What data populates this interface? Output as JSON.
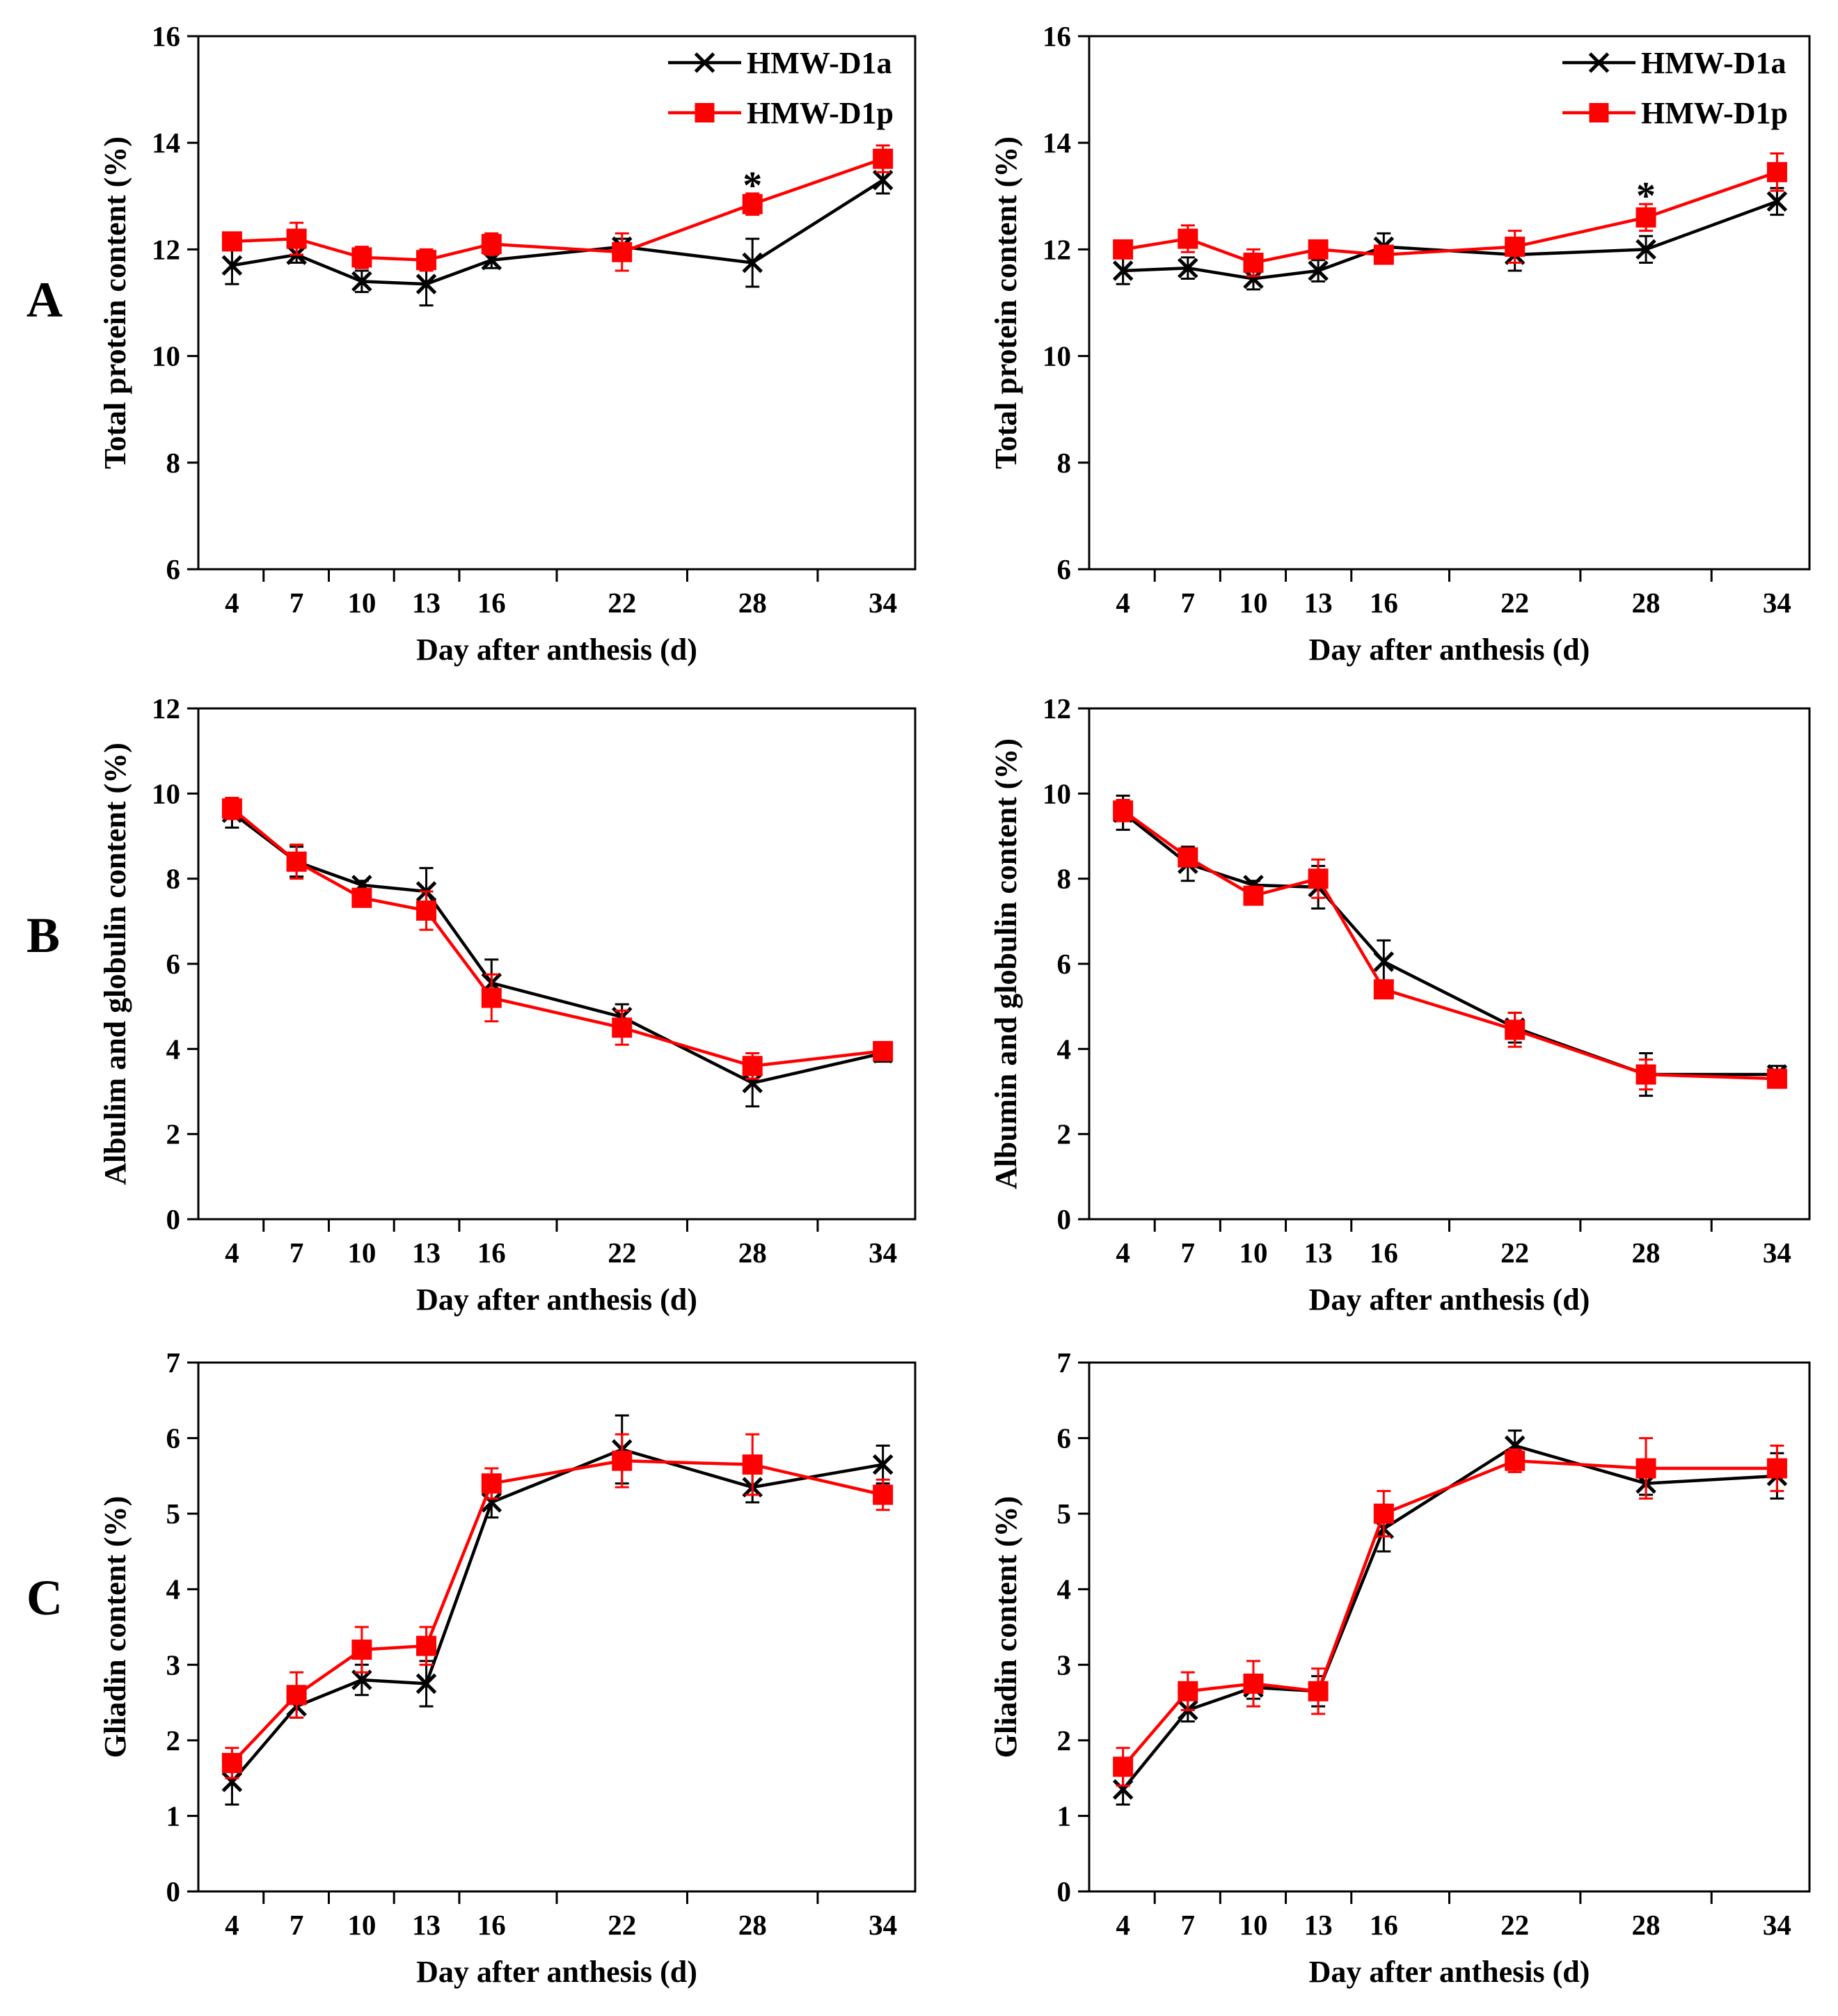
{
  "panel_letters": [
    "A",
    "B",
    "C"
  ],
  "colors": {
    "HMW-D1a": "#000000",
    "HMW-D1p": "#ff0000"
  },
  "chart_data": [
    {
      "type": "line",
      "row": 0,
      "col": 0,
      "legend": true,
      "legend_position": "top-right",
      "xlabel": "Day after anthesis (d)",
      "ylabel": "Total protein content (%)",
      "ylim": [
        6,
        16
      ],
      "yticks": [
        6,
        8,
        10,
        12,
        14,
        16
      ],
      "x": [
        4,
        7,
        10,
        13,
        16,
        22,
        28,
        34
      ],
      "series": [
        {
          "name": "HMW-D1a",
          "marker": "x",
          "values": [
            11.7,
            11.9,
            11.4,
            11.35,
            11.8,
            12.05,
            11.75,
            13.3
          ],
          "errors": [
            0.35,
            0.15,
            0.2,
            0.4,
            0.15,
            0.15,
            0.45,
            0.25
          ]
        },
        {
          "name": "HMW-D1p",
          "marker": "square",
          "values": [
            12.15,
            12.2,
            11.85,
            11.8,
            12.1,
            11.95,
            12.85,
            13.7
          ],
          "errors": [
            0.15,
            0.3,
            0.2,
            0.2,
            0.2,
            0.35,
            0.2,
            0.25
          ]
        }
      ],
      "annotations": [
        {
          "x": 28,
          "y": 13.3,
          "text": "*"
        }
      ]
    },
    {
      "type": "line",
      "row": 0,
      "col": 1,
      "legend": true,
      "legend_position": "top-right",
      "xlabel": "Day after anthesis (d)",
      "ylabel": "Total protein content (%)",
      "ylim": [
        6,
        16
      ],
      "yticks": [
        6,
        8,
        10,
        12,
        14,
        16
      ],
      "x": [
        4,
        7,
        10,
        13,
        16,
        22,
        28,
        34
      ],
      "series": [
        {
          "name": "HMW-D1a",
          "marker": "x",
          "values": [
            11.6,
            11.65,
            11.45,
            11.6,
            12.05,
            11.9,
            12.0,
            12.9
          ],
          "errors": [
            0.25,
            0.2,
            0.2,
            0.2,
            0.25,
            0.3,
            0.25,
            0.25
          ]
        },
        {
          "name": "HMW-D1p",
          "marker": "square",
          "values": [
            12.0,
            12.2,
            11.75,
            12.0,
            11.9,
            12.05,
            12.6,
            13.45
          ],
          "errors": [
            0.1,
            0.25,
            0.25,
            0.15,
            0.1,
            0.3,
            0.25,
            0.35
          ]
        }
      ],
      "annotations": [
        {
          "x": 28,
          "y": 13.1,
          "text": "*"
        }
      ]
    },
    {
      "type": "line",
      "row": 1,
      "col": 0,
      "legend": false,
      "xlabel": "Day after anthesis (d)",
      "ylabel": "Albulim and globulin content (%)",
      "ylim": [
        0,
        12
      ],
      "yticks": [
        0,
        2,
        4,
        6,
        8,
        10,
        12
      ],
      "x": [
        4,
        7,
        10,
        13,
        16,
        22,
        28,
        34
      ],
      "series": [
        {
          "name": "HMW-D1a",
          "marker": "x",
          "values": [
            9.55,
            8.4,
            7.85,
            7.7,
            5.55,
            4.75,
            3.2,
            3.9
          ],
          "errors": [
            0.35,
            0.35,
            0.1,
            0.55,
            0.55,
            0.3,
            0.55,
            0.2
          ]
        },
        {
          "name": "HMW-D1p",
          "marker": "square",
          "values": [
            9.65,
            8.4,
            7.55,
            7.25,
            5.2,
            4.5,
            3.6,
            3.95
          ],
          "errors": [
            0.25,
            0.4,
            0.2,
            0.45,
            0.55,
            0.4,
            0.3,
            0.15
          ]
        }
      ]
    },
    {
      "type": "line",
      "row": 1,
      "col": 1,
      "legend": false,
      "xlabel": "Day after anthesis (d)",
      "ylabel": "Albumin and globulin content (%)",
      "ylim": [
        0,
        12
      ],
      "yticks": [
        0,
        2,
        4,
        6,
        8,
        10,
        12
      ],
      "x": [
        4,
        7,
        10,
        13,
        16,
        22,
        28,
        34
      ],
      "series": [
        {
          "name": "HMW-D1a",
          "marker": "x",
          "values": [
            9.55,
            8.35,
            7.85,
            7.8,
            6.05,
            4.5,
            3.4,
            3.4
          ],
          "errors": [
            0.4,
            0.4,
            0.1,
            0.5,
            0.5,
            0.35,
            0.5,
            0.2
          ]
        },
        {
          "name": "HMW-D1p",
          "marker": "square",
          "values": [
            9.6,
            8.5,
            7.6,
            8.0,
            5.4,
            4.45,
            3.4,
            3.3
          ],
          "errors": [
            0.25,
            0.2,
            0.2,
            0.45,
            0.2,
            0.4,
            0.35,
            0.15
          ]
        }
      ]
    },
    {
      "type": "line",
      "row": 2,
      "col": 0,
      "legend": false,
      "xlabel": "Day after anthesis (d)",
      "ylabel": "Gliadin content (%)",
      "ylim": [
        0,
        7
      ],
      "yticks": [
        0,
        1,
        2,
        3,
        4,
        5,
        6,
        7
      ],
      "x": [
        4,
        7,
        10,
        13,
        16,
        22,
        28,
        34
      ],
      "series": [
        {
          "name": "HMW-D1a",
          "marker": "x",
          "values": [
            1.45,
            2.45,
            2.8,
            2.75,
            5.15,
            5.85,
            5.35,
            5.65
          ],
          "errors": [
            0.3,
            0.15,
            0.2,
            0.3,
            0.2,
            0.45,
            0.2,
            0.25
          ]
        },
        {
          "name": "HMW-D1p",
          "marker": "square",
          "values": [
            1.7,
            2.6,
            3.2,
            3.25,
            5.4,
            5.7,
            5.65,
            5.25
          ],
          "errors": [
            0.2,
            0.3,
            0.3,
            0.25,
            0.2,
            0.35,
            0.4,
            0.2
          ]
        }
      ]
    },
    {
      "type": "line",
      "row": 2,
      "col": 1,
      "legend": false,
      "xlabel": "Day after anthesis (d)",
      "ylabel": "Gliadin content (%)",
      "ylim": [
        0,
        7
      ],
      "yticks": [
        0,
        1,
        2,
        3,
        4,
        5,
        6,
        7
      ],
      "x": [
        4,
        7,
        10,
        13,
        16,
        22,
        28,
        34
      ],
      "series": [
        {
          "name": "HMW-D1a",
          "marker": "x",
          "values": [
            1.35,
            2.4,
            2.7,
            2.65,
            4.8,
            5.9,
            5.4,
            5.5
          ],
          "errors": [
            0.2,
            0.15,
            0.15,
            0.2,
            0.3,
            0.2,
            0.15,
            0.3
          ]
        },
        {
          "name": "HMW-D1p",
          "marker": "square",
          "values": [
            1.65,
            2.65,
            2.75,
            2.65,
            5.0,
            5.7,
            5.6,
            5.6
          ],
          "errors": [
            0.25,
            0.25,
            0.3,
            0.3,
            0.3,
            0.15,
            0.4,
            0.3
          ]
        }
      ]
    }
  ]
}
